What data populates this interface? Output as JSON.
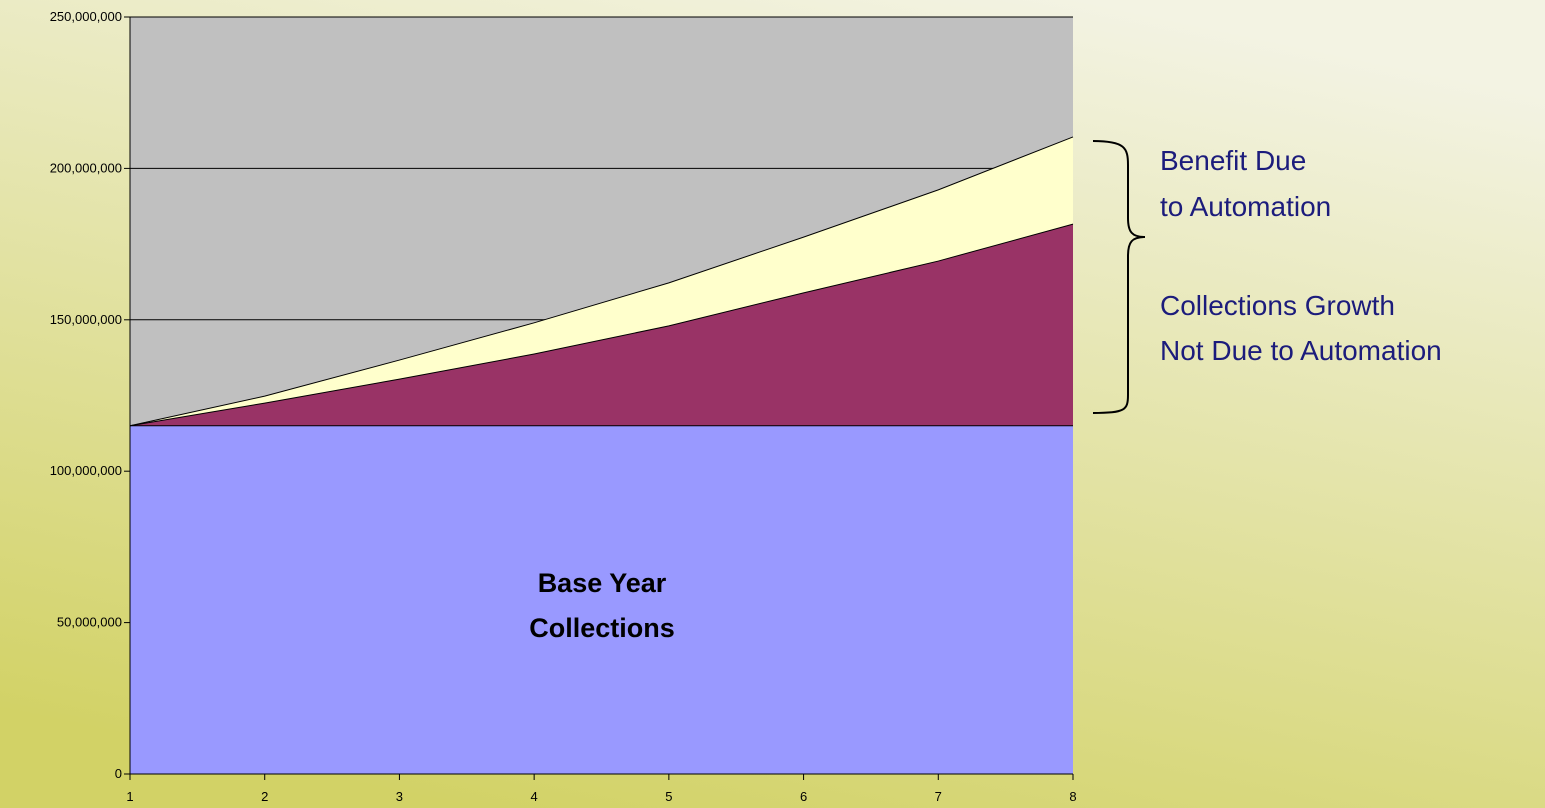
{
  "chart_data": {
    "type": "stacked-area",
    "x": [
      1,
      2,
      3,
      4,
      5,
      6,
      7,
      8
    ],
    "series": [
      {
        "labels": [
          "Base Year",
          "Collections"
        ],
        "color": "#9999ff",
        "values": [
          115000000,
          115000000,
          115000000,
          115000000,
          115000000,
          115000000,
          115000000,
          115000000
        ]
      },
      {
        "labels": [
          "Collections Growth",
          "Not Due to Automation"
        ],
        "color": "#993366",
        "values": [
          0,
          7500000,
          15400000,
          23700000,
          33000000,
          43900000,
          54400000,
          66600000
        ]
      },
      {
        "labels": [
          "Benefit Due",
          "to Automation"
        ],
        "color": "#ffffcc",
        "values": [
          0,
          2300000,
          6300000,
          10300000,
          14200000,
          18400000,
          23500000,
          28800000
        ]
      }
    ],
    "xlim": [
      1,
      8
    ],
    "ylim": [
      0,
      250000000
    ],
    "xticks": [
      1,
      2,
      3,
      4,
      5,
      6,
      7,
      8
    ],
    "yticks": [
      0,
      {
        "value": 50000000,
        "label": "50,000,000"
      },
      {
        "value": 100000000,
        "label": "100,000,000"
      },
      {
        "value": 150000000,
        "label": "150,000,000"
      },
      {
        "value": 200000000,
        "label": "200,000,000"
      },
      {
        "value": 250000000,
        "label": "250,000,000"
      }
    ],
    "grid": true,
    "plot_background": "#c0c0c0"
  }
}
